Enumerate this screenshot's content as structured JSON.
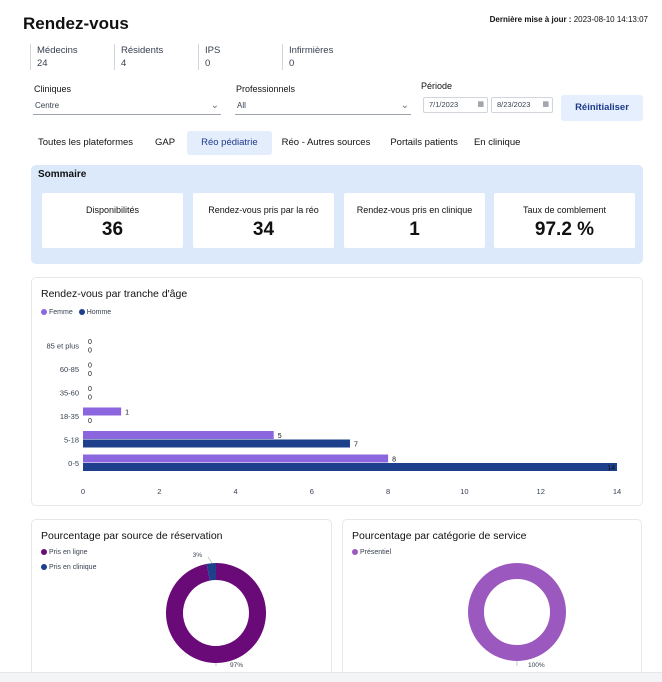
{
  "header": {
    "title": "Rendez-vous",
    "last_update_label": "Dernière mise à jour :",
    "last_update_value": "2023-08-10 14:13:07"
  },
  "counts": [
    {
      "label": "Médecins",
      "value": "24"
    },
    {
      "label": "Résidents",
      "value": "4"
    },
    {
      "label": "IPS",
      "value": "0"
    },
    {
      "label": "Infirmières",
      "value": "0"
    }
  ],
  "filters": {
    "cliniques_label": "Cliniques",
    "cliniques_value": "Centre",
    "professionnels_label": "Professionnels",
    "professionnels_value": "All",
    "periode_label": "Période",
    "date_start": "7/1/2023",
    "date_end": "8/23/2023",
    "reset_label": "Réinitialiser"
  },
  "tabs": [
    {
      "label": "Toutes les plateformes"
    },
    {
      "label": "GAP"
    },
    {
      "label": "Réo pédiatrie"
    },
    {
      "label": "Réo - Autres sources"
    },
    {
      "label": "Portails patients"
    },
    {
      "label": "En clinique"
    }
  ],
  "active_tab": "Réo pédiatrie",
  "summary": {
    "title": "Sommaire",
    "cards": [
      {
        "label": "Disponibilités",
        "value": "36"
      },
      {
        "label": "Rendez-vous pris par la réo",
        "value": "34"
      },
      {
        "label": "Rendez-vous pris en clinique",
        "value": "1"
      },
      {
        "label": "Taux de comblement",
        "value": "97.2 %"
      }
    ]
  },
  "colors": {
    "femme": "#8b66de",
    "homme": "#1e3f8c",
    "en_ligne": "#6a0a78",
    "en_clinique": "#1e3f8c",
    "presentiel": "#9b59c0"
  },
  "chart_data": [
    {
      "type": "bar",
      "orientation": "horizontal",
      "title": "Rendez-vous par tranche d'âge",
      "categories": [
        "85 et plus",
        "60-85",
        "35-60",
        "18-35",
        "5-18",
        "0-5"
      ],
      "series": [
        {
          "name": "Femme",
          "values": [
            0,
            0,
            0,
            1,
            5,
            8
          ]
        },
        {
          "name": "Homme",
          "values": [
            0,
            0,
            0,
            0,
            7,
            14
          ]
        }
      ],
      "xticks": [
        "0",
        "2",
        "4",
        "6",
        "8",
        "10",
        "12",
        "14"
      ],
      "xlim": [
        0,
        14
      ],
      "legend": "top-left"
    },
    {
      "type": "pie",
      "donut": true,
      "title": "Pourcentage par source de réservation",
      "slices": [
        {
          "name": "Pris en ligne",
          "value": 97,
          "label": "97%"
        },
        {
          "name": "Pris en clinique",
          "value": 3,
          "label": "3%"
        }
      ],
      "legend": "top-left"
    },
    {
      "type": "pie",
      "donut": true,
      "title": "Pourcentage par catégorie de service",
      "slices": [
        {
          "name": "Présentiel",
          "value": 100,
          "label": "100%"
        }
      ],
      "legend": "top-left"
    }
  ]
}
